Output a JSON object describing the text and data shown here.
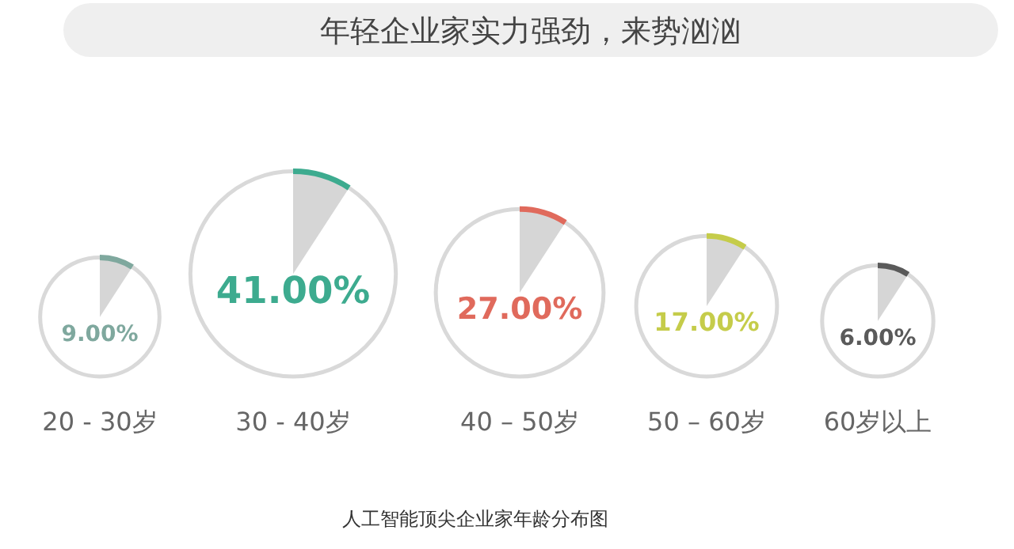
{
  "chart_data": {
    "type": "other",
    "title": "年轻企业家实力强劲，来势汹汹",
    "categories": [
      "20 - 30岁",
      "30 - 40岁",
      "40 – 50岁",
      "50 – 60岁",
      "60岁以上"
    ],
    "values": [
      9,
      41,
      27,
      17,
      6
    ],
    "value_labels": [
      "9.00%",
      "41.00%",
      "27.00%",
      "17.00%",
      "6.00%"
    ],
    "colors": [
      "#7fa89e",
      "#3dab8f",
      "#e06a5c",
      "#c5cc4a",
      "#5a5a5a"
    ],
    "annotations": [
      "人工智能顶尖企业家年龄分布图"
    ]
  }
}
